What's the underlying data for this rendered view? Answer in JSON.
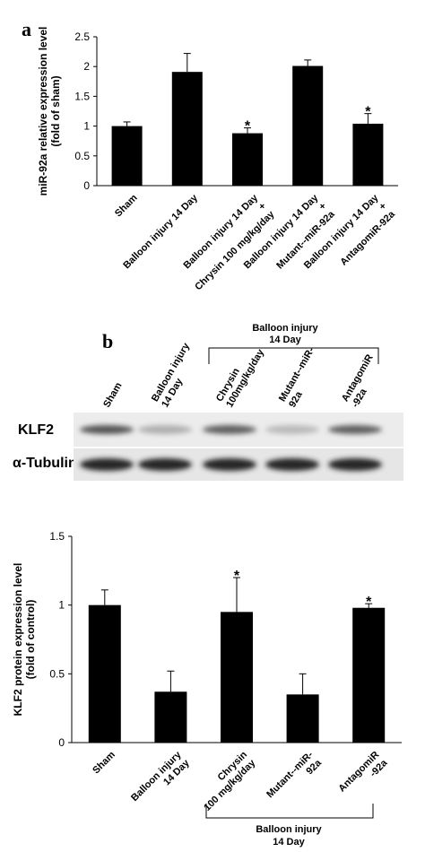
{
  "panels": {
    "a": "a",
    "b": "b"
  },
  "blot": {
    "bracket_label_line1": "Balloon injury",
    "bracket_label_line2": "14 Day",
    "lanes": [
      [
        "Sham"
      ],
      [
        "Balloon injury",
        "14 Day"
      ],
      [
        "Chrysin",
        "100mg/kg/day"
      ],
      [
        "Mutant--miR-",
        "92a"
      ],
      [
        "AntagomiR",
        "-92a"
      ]
    ],
    "rows": [
      {
        "label": "KLF2",
        "band_strength": [
          0.75,
          0.35,
          0.7,
          0.3,
          0.7
        ]
      },
      {
        "label": "α-Tubulin",
        "band_strength": [
          0.95,
          0.95,
          0.95,
          0.95,
          0.95
        ]
      }
    ]
  },
  "chart_data": [
    {
      "type": "bar",
      "ylabel": "miR-92a relative expression level (fold of sham)",
      "ylim": [
        0,
        2.5
      ],
      "yticks": [
        0,
        0.5,
        1,
        1.5,
        2,
        2.5
      ],
      "ytick_labels": [
        "0",
        "0.5",
        "1",
        "1.5",
        "2",
        "2.5"
      ],
      "categories": [
        [
          "Sham"
        ],
        [
          "Balloon injury 14 Day"
        ],
        [
          "Balloon injury 14 Day",
          "+",
          "Chrysin 100 mg/kg/day"
        ],
        [
          "Balloon injury 14 Day",
          "+",
          "Mutant--miR-92a"
        ],
        [
          "Balloon injury 14 Day",
          "+",
          "AntagomiR-92a"
        ]
      ],
      "values": [
        1.0,
        1.91,
        0.88,
        2.01,
        1.04
      ],
      "errors": [
        0.07,
        0.31,
        0.09,
        0.1,
        0.17
      ],
      "significance": [
        "",
        "",
        "*",
        "",
        "*"
      ]
    },
    {
      "type": "bar",
      "ylabel": "KLF2 protein expression level (fold of control)",
      "ylim": [
        0,
        1.5
      ],
      "yticks": [
        0,
        0.5,
        1,
        1.5
      ],
      "ytick_labels": [
        "0",
        "0.5",
        "1",
        "1.5"
      ],
      "categories": [
        [
          "Sham"
        ],
        [
          "Balloon injury",
          "14 Day"
        ],
        [
          "Chrysin",
          "100 mg/kg/day"
        ],
        [
          "Mutant--miR-",
          "92a"
        ],
        [
          "AntagomiR",
          "-92a"
        ]
      ],
      "values": [
        1.0,
        0.37,
        0.95,
        0.35,
        0.98
      ],
      "errors": [
        0.11,
        0.15,
        0.25,
        0.15,
        0.03
      ],
      "significance": [
        "",
        "",
        "*",
        "",
        "*"
      ],
      "group_label_line1": "Balloon injury",
      "group_label_line2": "14 Day"
    }
  ]
}
